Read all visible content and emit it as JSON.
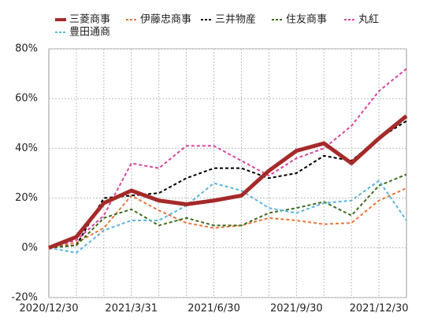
{
  "chart_data": {
    "type": "line",
    "categories": [
      "2020/12/30",
      null,
      null,
      "2021/3/31",
      null,
      null,
      "2021/6/30",
      null,
      null,
      "2021/9/30",
      null,
      null,
      "2021/12/30",
      null
    ],
    "series": [
      {
        "name": "三菱商事",
        "color": "#a52a2a",
        "line_style": "solid",
        "values": [
          0,
          4.4,
          18,
          23,
          19,
          17.5,
          19,
          21,
          31,
          39,
          42,
          34,
          44,
          53
        ]
      },
      {
        "name": "伊藤忠商事",
        "color": "#e8763a",
        "line_style": "dashed",
        "values": [
          0,
          2,
          8,
          21,
          15,
          10,
          8,
          9,
          12,
          11,
          9.5,
          10,
          19,
          24
        ]
      },
      {
        "name": "三井物産",
        "color": "#000000",
        "line_style": "dashed",
        "values": [
          0,
          1,
          20,
          21,
          22,
          28,
          32,
          32,
          28,
          30,
          37,
          35,
          44,
          51
        ]
      },
      {
        "name": "住友商事",
        "color": "#3d6b1e",
        "line_style": "dashed",
        "values": [
          0,
          1,
          12,
          15.5,
          9,
          12,
          9,
          9,
          14,
          16,
          18.5,
          13,
          25,
          29.5
        ]
      },
      {
        "name": "丸紅",
        "color": "#d9449e",
        "line_style": "dashed",
        "values": [
          0,
          3,
          13,
          34,
          32,
          41,
          41,
          35,
          29,
          36,
          40,
          49,
          63,
          72
        ]
      },
      {
        "name": "豊田通商",
        "color": "#5ab4e0",
        "line_style": "dashed",
        "values": [
          0,
          -2,
          7,
          11,
          11,
          17,
          26,
          23,
          16,
          14,
          18,
          19,
          27,
          11
        ]
      }
    ],
    "ylim": [
      -20,
      80
    ],
    "yticks": [
      {
        "value": -20,
        "label": "-20%"
      },
      {
        "value": 0,
        "label": "0%"
      },
      {
        "value": 20,
        "label": "20%"
      },
      {
        "value": 40,
        "label": "40%"
      },
      {
        "value": 60,
        "label": "60%"
      },
      {
        "value": 80,
        "label": "80%"
      }
    ],
    "grid": true
  }
}
